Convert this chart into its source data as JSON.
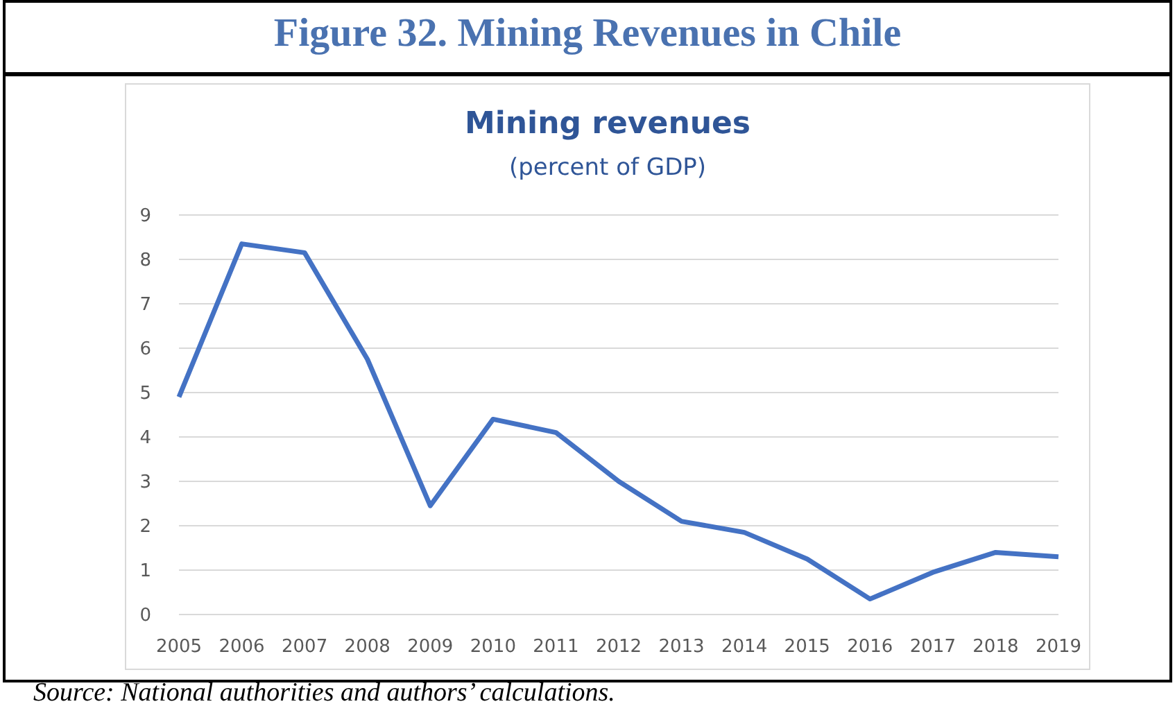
{
  "chart_data": {
    "type": "line",
    "title": "Mining revenues",
    "subtitle": "(percent of GDP)",
    "annotations": [
      "Figure 32. Mining Revenues in Chile",
      "Source: National authorities and authors’ calculations."
    ],
    "categories": [
      "2005",
      "2006",
      "2007",
      "2008",
      "2009",
      "2010",
      "2011",
      "2012",
      "2013",
      "2014",
      "2015",
      "2016",
      "2017",
      "2018",
      "2019"
    ],
    "series": [
      {
        "color": "#4472c4",
        "values": [
          4.9,
          8.35,
          8.15,
          5.75,
          2.45,
          4.4,
          4.1,
          3.0,
          2.1,
          1.85,
          1.25,
          0.35,
          0.95,
          1.4,
          1.3
        ]
      }
    ],
    "ylim": [
      0,
      9
    ],
    "yticks": [
      0,
      1,
      2,
      3,
      4,
      5,
      6,
      7,
      8,
      9
    ],
    "grid": "y",
    "legend": false,
    "marker": "none",
    "line_style": "solid"
  }
}
